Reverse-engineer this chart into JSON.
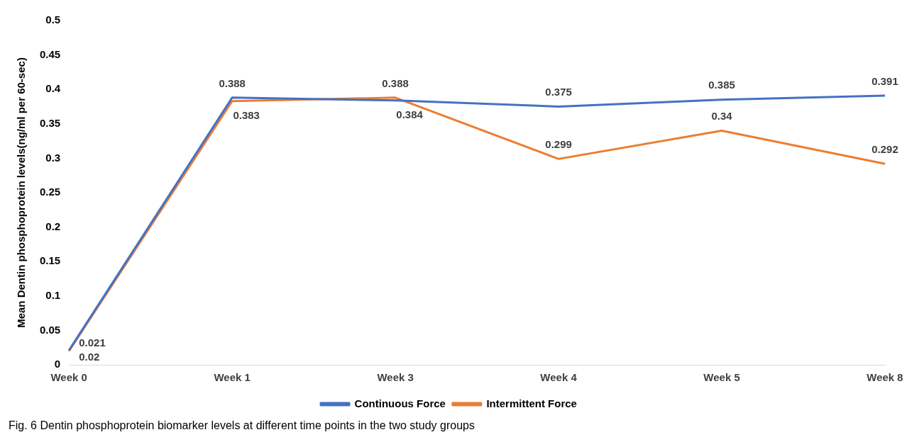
{
  "chart_data": {
    "type": "line",
    "ylabel": "Mean Dentin phosphoprotein levels(ng/ml per 60-sec)",
    "categories": [
      "Week 0",
      "Week 1",
      "Week 3",
      "Week 4",
      "Week 5",
      "Week 8"
    ],
    "series": [
      {
        "name": "Continuous Force",
        "color": "#4472c4",
        "values": [
          0.021,
          0.388,
          0.384,
          0.375,
          0.385,
          0.391
        ]
      },
      {
        "name": "Intermittent Force",
        "color": "#ed7d31",
        "values": [
          0.02,
          0.383,
          0.388,
          0.299,
          0.34,
          0.292
        ]
      }
    ],
    "ylim": [
      0,
      0.5
    ],
    "yticks": [
      0,
      0.05,
      0.1,
      0.15,
      0.2,
      0.25,
      0.3,
      0.35,
      0.4,
      0.45,
      0.5
    ],
    "grid": false,
    "legend": "bottom",
    "marker": "none",
    "line_style": "solid",
    "data_labels": true,
    "annotations": [
      "Fig. 6  Dentin phosphoprotein biomarker levels at different time points in the two study groups"
    ]
  }
}
